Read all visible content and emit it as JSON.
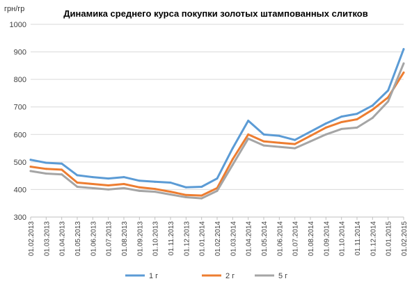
{
  "chart_data": {
    "type": "line",
    "title": "Динамика среднего курса покупки золотых штампованных слитков",
    "ylabel": "грн/гр",
    "xlabel": "",
    "ylim": [
      300,
      1000
    ],
    "yticks": [
      "300",
      "400",
      "500",
      "600",
      "700",
      "800",
      "900",
      "1000"
    ],
    "grid": true,
    "legend_position": "bottom",
    "x": [
      "01.02.2013",
      "01.03.2013",
      "01.04.2013",
      "01.05.2013",
      "01.06.2013",
      "01.07.2013",
      "01.08.2013",
      "01.09.2013",
      "01.10.2013",
      "01.11.2013",
      "01.12.2013",
      "01.01.2014",
      "01.02.2014",
      "01.03.2014",
      "01.04.2014",
      "01.05.2014",
      "01.06.2014",
      "01.07.2014",
      "01.08.2014",
      "01.09.2014",
      "01.10.2014",
      "01.11.2014",
      "01.12.2014",
      "01.01.2015",
      "01.02.2015"
    ],
    "series": [
      {
        "name": "1 г",
        "color": "#5B9BD5",
        "values": [
          508,
          497,
          494,
          452,
          445,
          440,
          445,
          432,
          428,
          425,
          408,
          410,
          440,
          550,
          650,
          600,
          595,
          580,
          610,
          640,
          665,
          675,
          705,
          760,
          910
        ]
      },
      {
        "name": "2 г",
        "color": "#ED7D31",
        "values": [
          483,
          475,
          472,
          425,
          420,
          415,
          420,
          408,
          402,
          392,
          380,
          378,
          405,
          510,
          600,
          575,
          570,
          565,
          595,
          625,
          645,
          655,
          690,
          735,
          825
        ]
      },
      {
        "name": "5 г",
        "color": "#A5A5A5",
        "values": [
          467,
          458,
          455,
          410,
          405,
          400,
          405,
          395,
          392,
          382,
          372,
          368,
          395,
          490,
          585,
          560,
          555,
          550,
          575,
          600,
          620,
          625,
          660,
          720,
          858
        ]
      }
    ]
  }
}
